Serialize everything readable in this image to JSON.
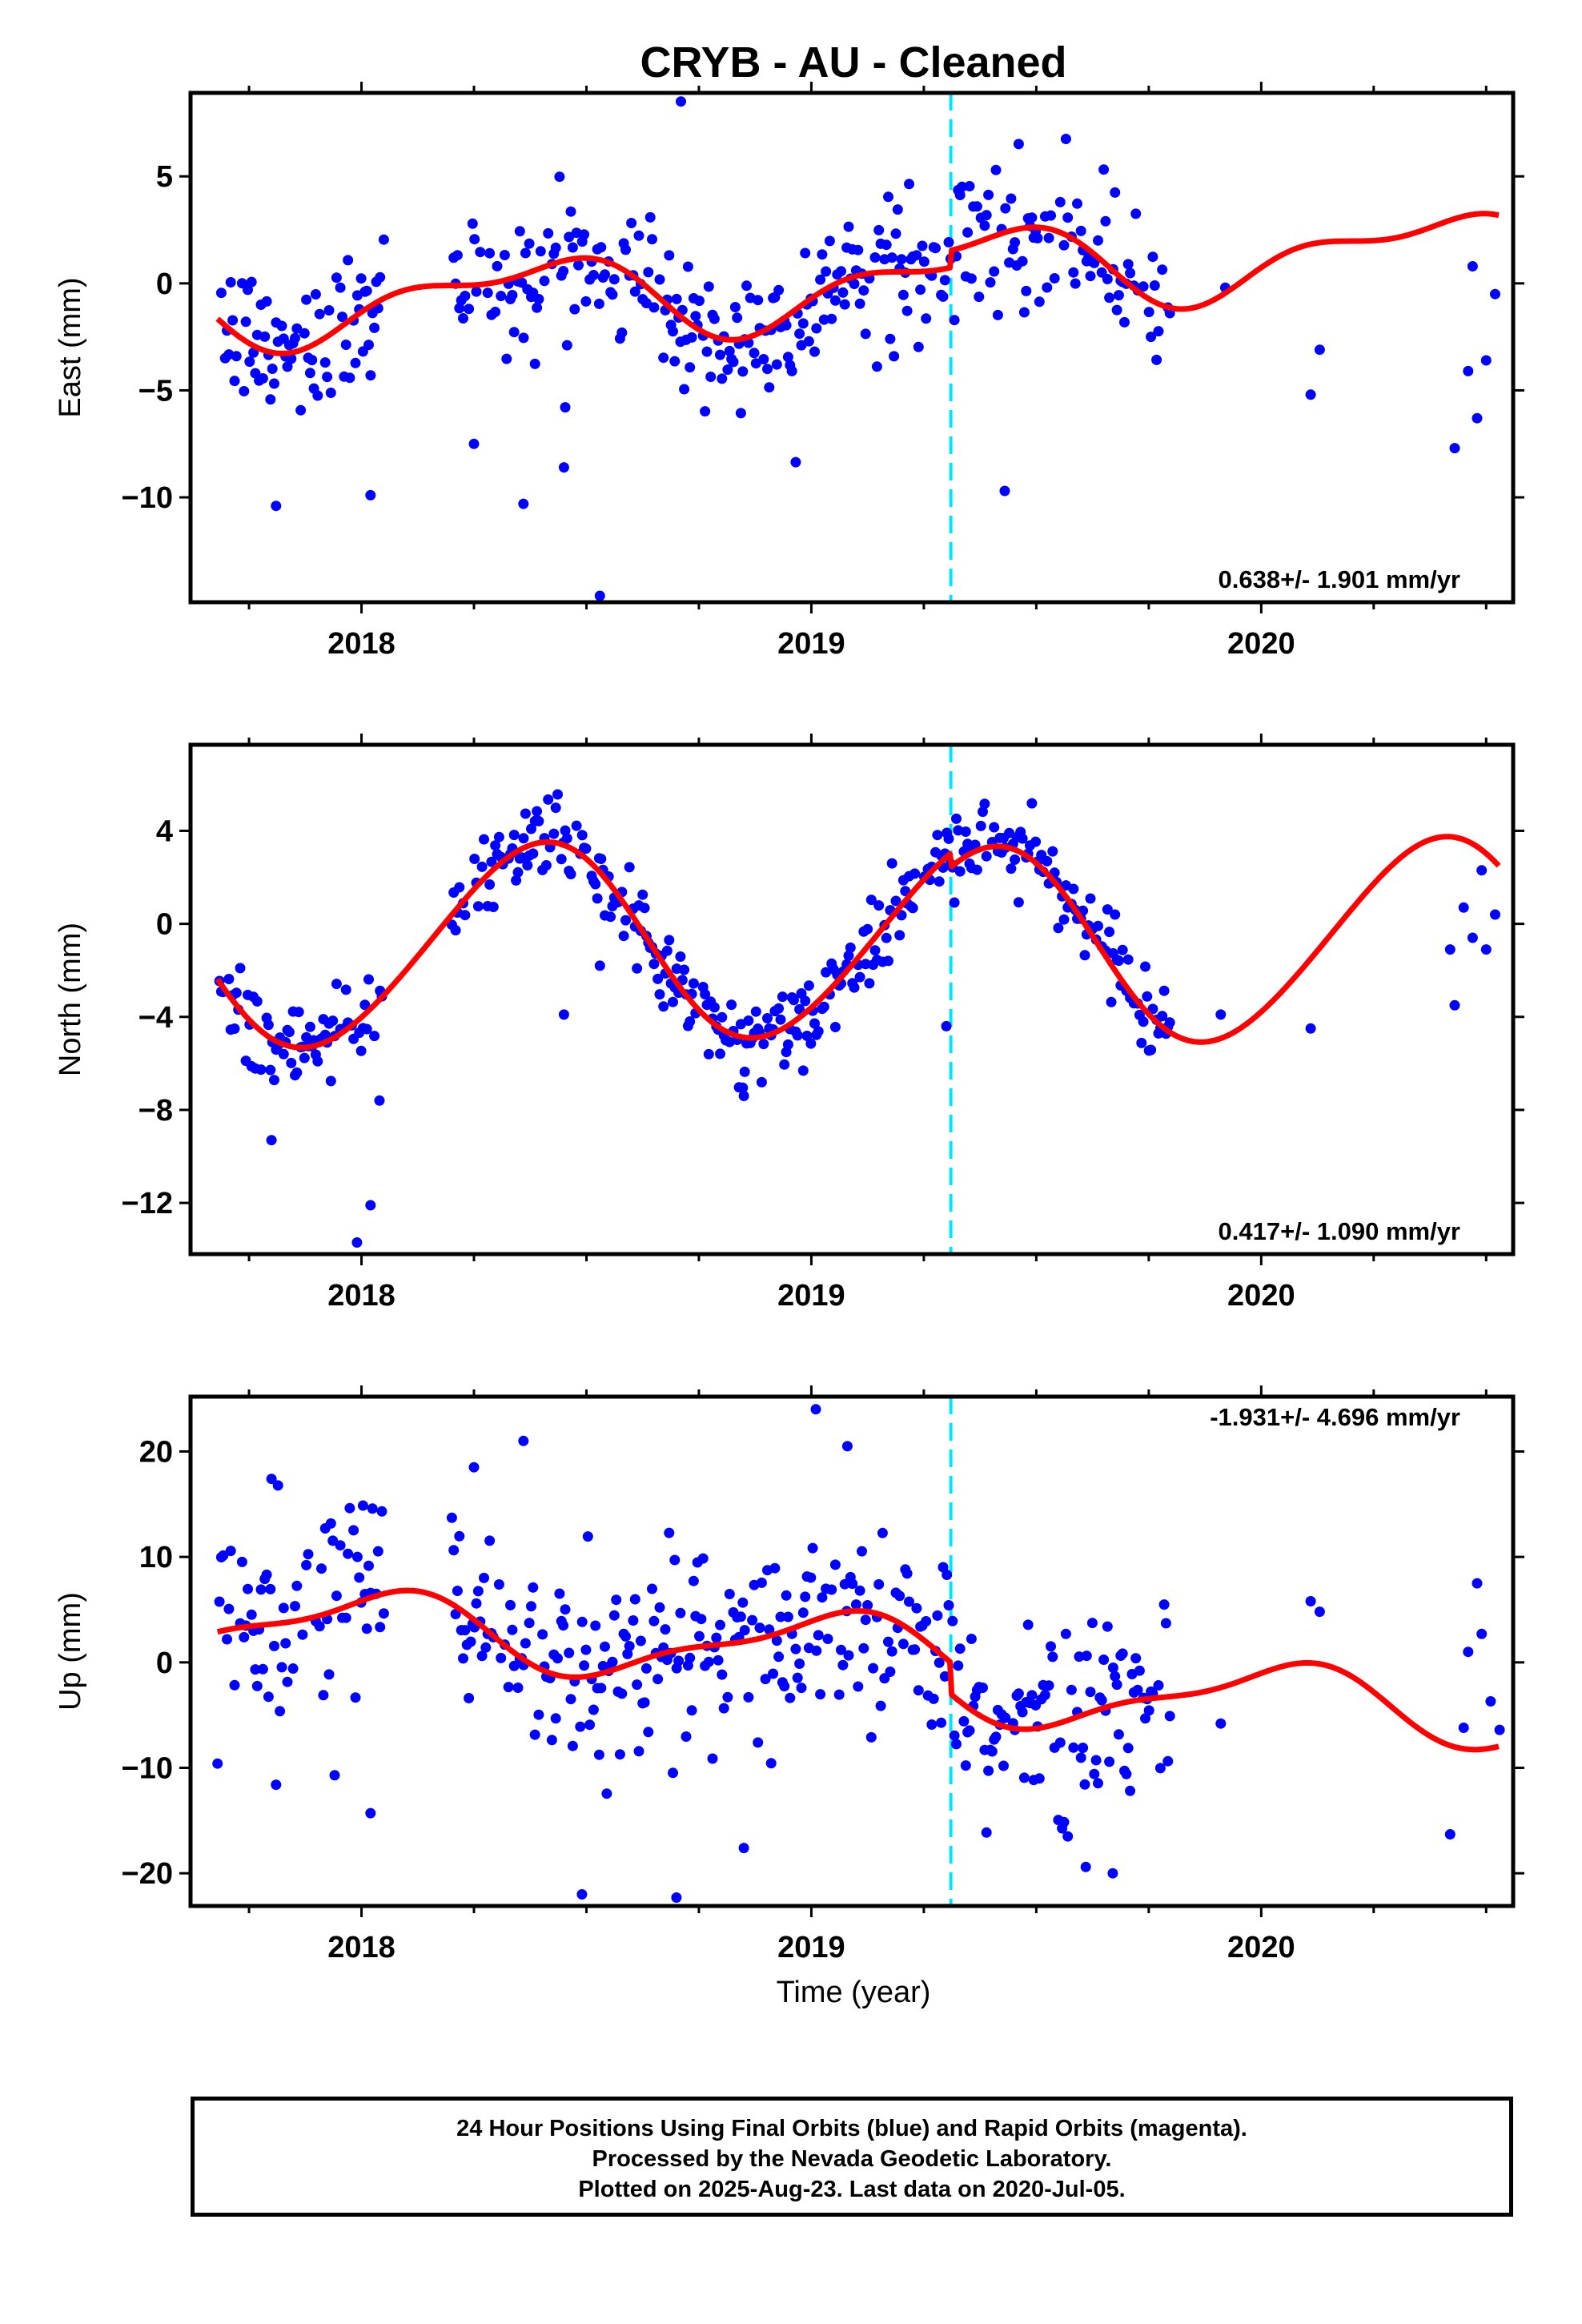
{
  "title": "CRYB  - AU - Cleaned",
  "xlabel": "Time (year)",
  "footer": {
    "lines": [
      "24 Hour Positions Using Final Orbits (blue) and Rapid Orbits (magenta).",
      "Processed by the Nevada Geodetic Laboratory.",
      "Plotted on 2025-Aug-23. Last data on 2020-Jul-05."
    ]
  },
  "colors": {
    "data": "#0000ff",
    "model": "#ff0000",
    "equipment_change": "#00e5ff"
  },
  "chart_data": [
    {
      "type": "scatter",
      "panel": "east",
      "ylabel": "East (mm)",
      "rate_label": "0.638+/- 1.901 mm/yr",
      "xlim": [
        2017.62,
        2020.56
      ],
      "ylim": [
        -14.9,
        8.9
      ],
      "yticks": [
        5,
        0,
        -5,
        -10
      ],
      "ytick_labels": [
        "5",
        "0",
        "−5",
        "−10"
      ],
      "xticks": [
        2018,
        2019,
        2020
      ],
      "xtick_labels": [
        "2018",
        "2019",
        "2020"
      ],
      "offset_year": 2019.31,
      "model": {
        "mean": -0.2,
        "trend": 0.638,
        "offset_step": 0.8,
        "annual_sin": 1.2,
        "annual_cos": -1.1,
        "semi_sin": 0.5,
        "semi_cos": 0.6
      },
      "noise": 1.7,
      "outliers": [
        [
          2017.81,
          -10.4
        ],
        [
          2018.02,
          -9.9
        ],
        [
          2018.36,
          -10.3
        ],
        [
          2018.45,
          -8.6
        ],
        [
          2018.53,
          -14.6
        ],
        [
          2018.25,
          -7.5
        ],
        [
          2018.71,
          8.5
        ],
        [
          2019.43,
          -9.7
        ],
        [
          2020.11,
          -5.2
        ],
        [
          2020.43,
          -7.7
        ],
        [
          2020.46,
          -4.1
        ],
        [
          2020.48,
          -6.3
        ],
        [
          2020.5,
          -3.6
        ],
        [
          2020.52,
          -0.5
        ],
        [
          2020.47,
          0.8
        ],
        [
          2019.92,
          -0.2
        ],
        [
          2020.13,
          -3.1
        ]
      ]
    },
    {
      "type": "scatter",
      "panel": "north",
      "ylabel": "North (mm)",
      "rate_label": "0.417+/- 1.090 mm/yr",
      "xlim": [
        2017.62,
        2020.56
      ],
      "ylim": [
        -14.2,
        7.7
      ],
      "yticks": [
        4,
        0,
        -4,
        -8,
        -12
      ],
      "ytick_labels": [
        "4",
        "0",
        "−4",
        "−8",
        "−12"
      ],
      "xticks": [
        2018,
        2019,
        2020
      ],
      "xtick_labels": [
        "2018",
        "2019",
        "2020"
      ],
      "offset_year": 2019.31,
      "model": {
        "mean": -0.6,
        "trend": 0.417,
        "offset_step": -0.6,
        "annual_sin": 2.7,
        "annual_cos": -3.3,
        "semi_sin": 0.0,
        "semi_cos": 0.3
      },
      "noise": 0.9,
      "outliers": [
        [
          2017.8,
          -9.3
        ],
        [
          2017.99,
          -13.7
        ],
        [
          2018.02,
          -12.1
        ],
        [
          2018.04,
          -7.6
        ],
        [
          2018.45,
          -3.9
        ],
        [
          2018.53,
          -1.8
        ],
        [
          2018.85,
          -7.4
        ],
        [
          2019.3,
          -4.4
        ],
        [
          2019.91,
          -3.9
        ],
        [
          2020.11,
          -4.5
        ],
        [
          2020.42,
          -1.1
        ],
        [
          2020.43,
          -3.5
        ],
        [
          2020.45,
          0.7
        ],
        [
          2020.47,
          -0.6
        ],
        [
          2020.49,
          2.3
        ],
        [
          2020.5,
          -1.1
        ],
        [
          2020.52,
          0.4
        ]
      ]
    },
    {
      "type": "scatter",
      "panel": "up",
      "ylabel": "Up (mm)",
      "rate_label": "-1.931+/- 4.696 mm/yr",
      "xlim": [
        2017.62,
        2020.56
      ],
      "ylim": [
        -23.1,
        25.2
      ],
      "yticks": [
        20,
        10,
        0,
        -10,
        -20
      ],
      "ytick_labels": [
        "20",
        "10",
        "0",
        "−10",
        "−20"
      ],
      "xticks": [
        2018,
        2019,
        2020
      ],
      "xtick_labels": [
        "2018",
        "2019",
        "2020"
      ],
      "offset_year": 2019.31,
      "model": {
        "mean": 1.3,
        "trend": -1.931,
        "offset_step": -3.0,
        "annual_sin": 0.8,
        "annual_cos": 3.1,
        "semi_sin": 1.0,
        "semi_cos": -0.5
      },
      "noise": 5.0,
      "outliers": [
        [
          2017.68,
          -9.6
        ],
        [
          2017.8,
          17.4
        ],
        [
          2017.81,
          -11.6
        ],
        [
          2018.02,
          -14.3
        ],
        [
          2018.25,
          18.5
        ],
        [
          2018.36,
          21.0
        ],
        [
          2018.49,
          -22.0
        ],
        [
          2018.7,
          -22.3
        ],
        [
          2018.85,
          -17.6
        ],
        [
          2019.01,
          24.0
        ],
        [
          2019.08,
          20.5
        ],
        [
          2019.61,
          -19.4
        ],
        [
          2019.67,
          -20.0
        ],
        [
          2019.91,
          -5.8
        ],
        [
          2020.11,
          5.8
        ],
        [
          2020.13,
          4.8
        ],
        [
          2020.42,
          -16.3
        ],
        [
          2020.45,
          -6.2
        ],
        [
          2020.46,
          1.0
        ],
        [
          2020.48,
          7.5
        ],
        [
          2020.49,
          2.7
        ],
        [
          2020.51,
          -3.7
        ],
        [
          2020.53,
          -6.4
        ]
      ]
    }
  ],
  "sampling": {
    "start": 2017.68,
    "end": 2019.8,
    "step": 0.0042,
    "gap": [
      2018.05,
      2018.2
    ],
    "seed": 12345
  }
}
